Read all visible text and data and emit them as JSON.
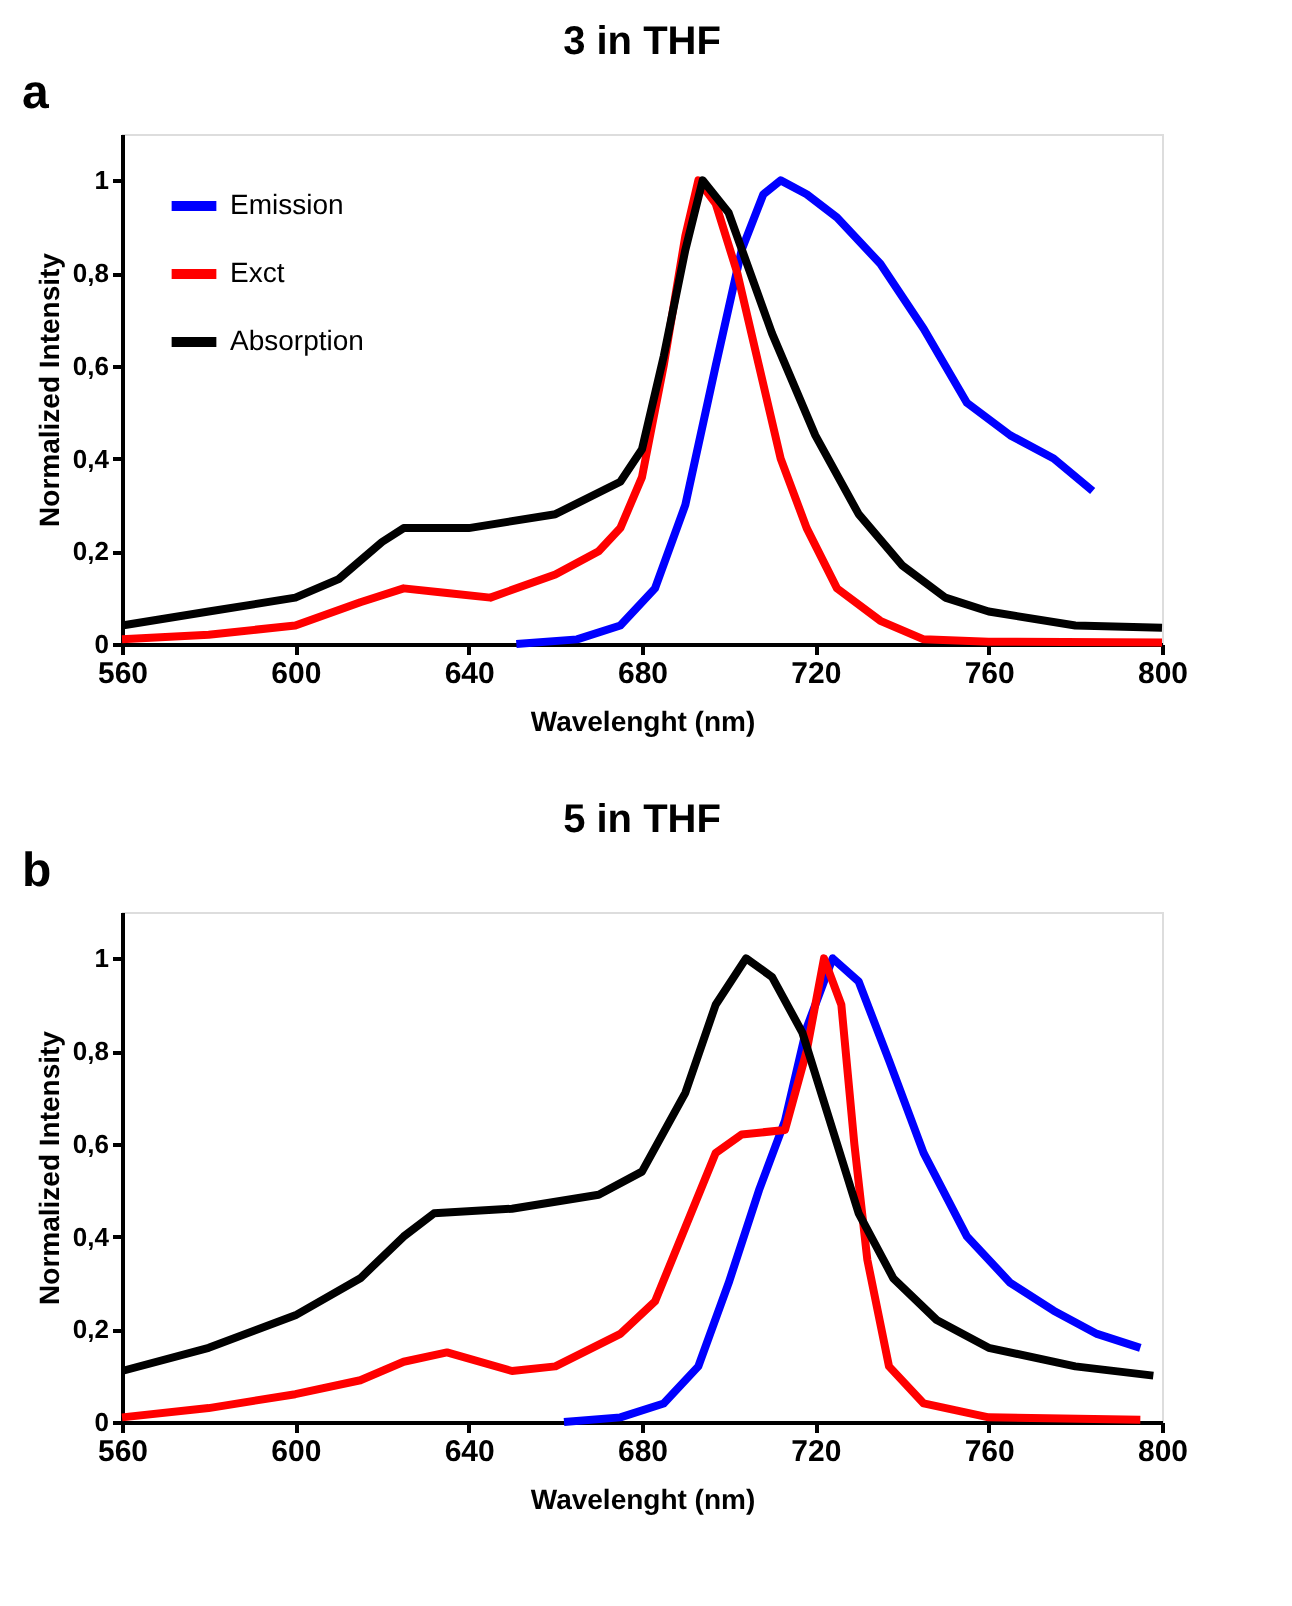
{
  "chart_data": [
    {
      "type": "line",
      "title": "3 in THF",
      "xlabel": "Wavelenght (nm)",
      "ylabel": "Normalized Intensity",
      "annotations": [
        "a"
      ],
      "legend": "top left",
      "grid": false,
      "marker": "none",
      "line_style": "solid",
      "xlim": [
        560,
        800
      ],
      "xticks": [
        560,
        600,
        640,
        680,
        720,
        760,
        800
      ],
      "ylim": [
        0,
        1.1
      ],
      "yticks": [
        0,
        {
          "value": 0.2,
          "label": "0,2"
        },
        {
          "value": 0.4,
          "label": "0,4"
        },
        {
          "value": 0.6,
          "label": "0,6"
        },
        {
          "value": 0.8,
          "label": "0,8"
        },
        1
      ],
      "series": [
        {
          "name": "Emission",
          "color": "#0000ff",
          "x": [
            651,
            665,
            675,
            683,
            690,
            697,
            703,
            708,
            712,
            718,
            725,
            735,
            745,
            755,
            765,
            775,
            784
          ],
          "values": [
            0.0,
            0.01,
            0.04,
            0.12,
            0.3,
            0.6,
            0.85,
            0.97,
            1.0,
            0.97,
            0.92,
            0.82,
            0.68,
            0.52,
            0.45,
            0.4,
            0.33
          ]
        },
        {
          "name": "Exct",
          "color": "#ff0000",
          "x": [
            560,
            580,
            600,
            615,
            625,
            635,
            645,
            660,
            670,
            675,
            680,
            685,
            690,
            693,
            697,
            702,
            707,
            712,
            718,
            725,
            735,
            745,
            760,
            800
          ],
          "values": [
            0.01,
            0.02,
            0.04,
            0.09,
            0.12,
            0.11,
            0.1,
            0.15,
            0.2,
            0.25,
            0.36,
            0.6,
            0.88,
            1.0,
            0.95,
            0.8,
            0.6,
            0.4,
            0.25,
            0.12,
            0.05,
            0.01,
            0.005,
            0.003
          ]
        },
        {
          "name": "Absorption",
          "color": "#000000",
          "x": [
            560,
            580,
            600,
            610,
            620,
            625,
            640,
            660,
            675,
            680,
            685,
            690,
            694,
            700,
            705,
            710,
            720,
            730,
            740,
            750,
            760,
            780,
            800
          ],
          "values": [
            0.04,
            0.07,
            0.1,
            0.14,
            0.22,
            0.25,
            0.25,
            0.28,
            0.35,
            0.42,
            0.62,
            0.85,
            1.0,
            0.93,
            0.8,
            0.67,
            0.45,
            0.28,
            0.17,
            0.1,
            0.07,
            0.04,
            0.035
          ]
        }
      ]
    },
    {
      "type": "line",
      "title": "5 in THF",
      "xlabel": "Wavelenght (nm)",
      "ylabel": "Normalized Intensity",
      "annotations": [
        "b"
      ],
      "legend": "top left",
      "grid": false,
      "marker": "none",
      "line_style": "solid",
      "xlim": [
        560,
        800
      ],
      "xticks": [
        560,
        600,
        640,
        680,
        720,
        760,
        800
      ],
      "ylim": [
        0,
        1.1
      ],
      "yticks": [
        0,
        {
          "value": 0.2,
          "label": "0,2"
        },
        {
          "value": 0.4,
          "label": "0,4"
        },
        {
          "value": 0.6,
          "label": "0,6"
        },
        {
          "value": 0.8,
          "label": "0,8"
        },
        1
      ],
      "series": [
        {
          "name": "Emission",
          "color": "#0000ff",
          "x": [
            662,
            675,
            685,
            693,
            700,
            707,
            713,
            718,
            724,
            730,
            737,
            745,
            755,
            765,
            775,
            785,
            795
          ],
          "values": [
            0.0,
            0.01,
            0.04,
            0.12,
            0.3,
            0.5,
            0.65,
            0.85,
            1.0,
            0.95,
            0.78,
            0.58,
            0.4,
            0.3,
            0.24,
            0.19,
            0.16
          ]
        },
        {
          "name": "Exct",
          "color": "#ff0000",
          "x": [
            560,
            580,
            600,
            615,
            625,
            635,
            650,
            660,
            675,
            683,
            690,
            697,
            703,
            713,
            718,
            722,
            726,
            729,
            732,
            737,
            745,
            760,
            795
          ],
          "values": [
            0.01,
            0.03,
            0.06,
            0.09,
            0.13,
            0.15,
            0.11,
            0.12,
            0.19,
            0.26,
            0.42,
            0.58,
            0.62,
            0.63,
            0.8,
            1.0,
            0.9,
            0.6,
            0.35,
            0.12,
            0.04,
            0.01,
            0.005
          ]
        },
        {
          "name": "Absorption",
          "color": "#000000",
          "x": [
            560,
            580,
            600,
            615,
            625,
            632,
            650,
            670,
            680,
            690,
            697,
            704,
            710,
            717,
            724,
            730,
            738,
            748,
            760,
            780,
            798
          ],
          "values": [
            0.11,
            0.16,
            0.23,
            0.31,
            0.4,
            0.45,
            0.46,
            0.49,
            0.54,
            0.71,
            0.9,
            1.0,
            0.96,
            0.84,
            0.63,
            0.45,
            0.31,
            0.22,
            0.16,
            0.12,
            0.1
          ]
        }
      ]
    }
  ]
}
